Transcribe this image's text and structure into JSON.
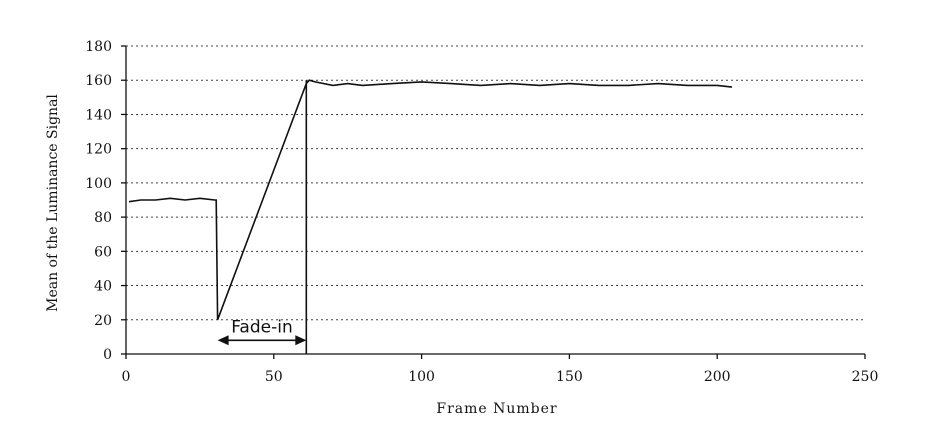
{
  "chart_data": {
    "type": "line",
    "title": "",
    "xlabel": "Frame Number",
    "ylabel": "Mean of the Luminance Signal",
    "xlim": [
      0,
      250
    ],
    "ylim": [
      0,
      180
    ],
    "x_ticks": [
      0,
      50,
      100,
      150,
      200,
      250
    ],
    "y_ticks": [
      0,
      20,
      40,
      60,
      80,
      100,
      120,
      140,
      160,
      180
    ],
    "grid": "horizontal",
    "series": [
      {
        "points": [
          [
            1,
            89
          ],
          [
            5,
            90
          ],
          [
            10,
            90
          ],
          [
            15,
            91
          ],
          [
            20,
            90
          ],
          [
            25,
            91
          ],
          [
            30,
            90
          ],
          [
            30.5,
            90
          ],
          [
            31,
            20
          ],
          [
            61,
            158
          ],
          [
            62,
            160
          ],
          [
            64,
            159
          ],
          [
            70,
            157
          ],
          [
            75,
            158
          ],
          [
            80,
            157
          ],
          [
            90,
            158
          ],
          [
            100,
            159
          ],
          [
            110,
            158
          ],
          [
            120,
            157
          ],
          [
            130,
            158
          ],
          [
            140,
            157
          ],
          [
            150,
            158
          ],
          [
            160,
            157
          ],
          [
            170,
            157
          ],
          [
            180,
            158
          ],
          [
            190,
            157
          ],
          [
            200,
            157
          ],
          [
            205,
            156
          ]
        ]
      }
    ],
    "annotations": [
      {
        "text": "Fade-in",
        "x_start": 31,
        "x_end": 61,
        "y": 8
      }
    ],
    "markers": [
      {
        "x": 61,
        "y_from": 0,
        "y_to": 160
      }
    ]
  }
}
